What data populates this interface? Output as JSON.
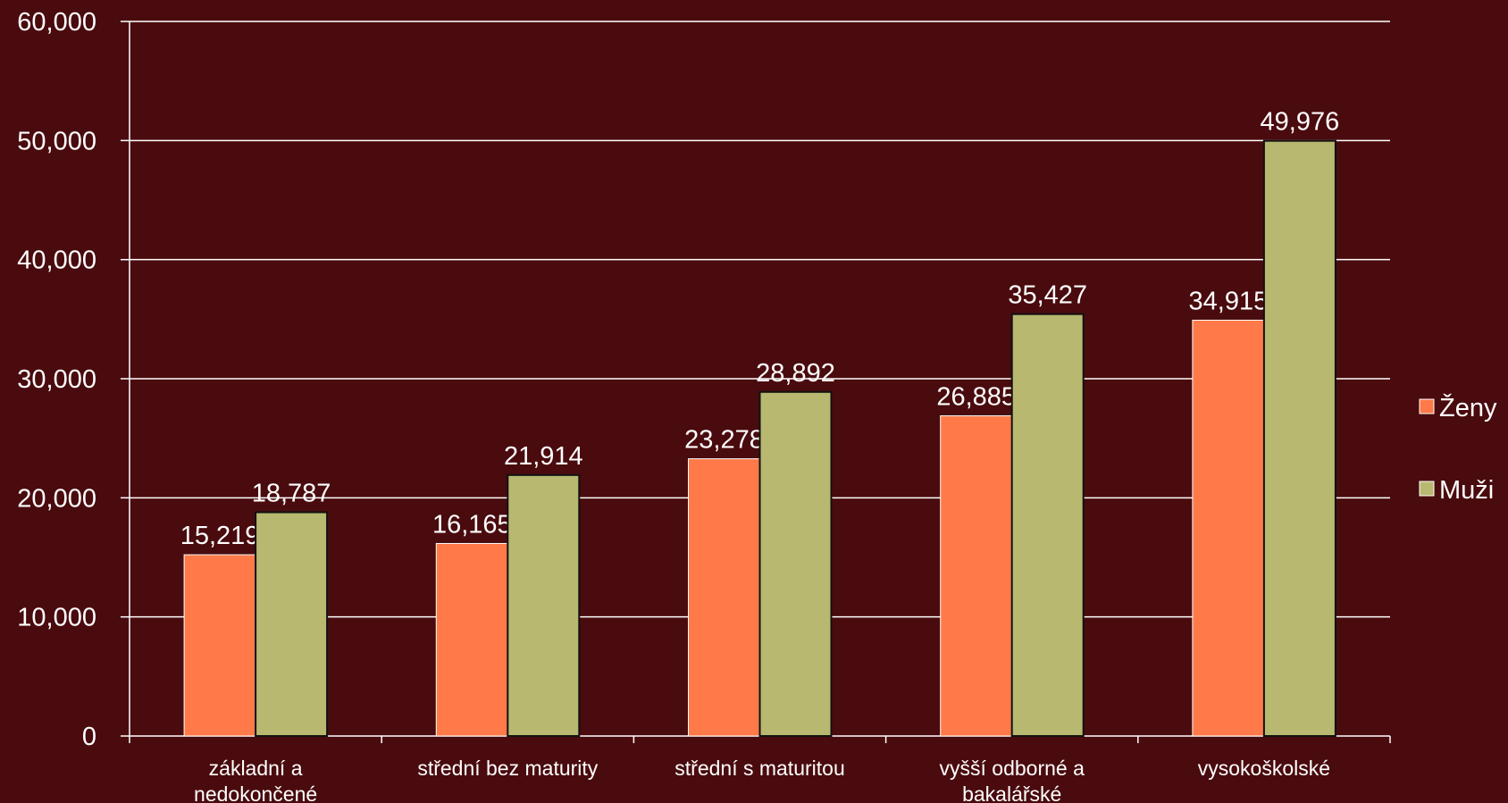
{
  "chart_data": {
    "type": "bar",
    "categories": [
      [
        "základní a",
        "nedokončené"
      ],
      [
        "střední bez maturity"
      ],
      [
        "střední s maturitou"
      ],
      [
        "vyšší odborné a",
        "bakalářské"
      ],
      [
        "vysokoškolské"
      ]
    ],
    "series": [
      {
        "name": "Ženy",
        "values": [
          15219,
          16165,
          23278,
          26885,
          34915
        ],
        "value_labels": [
          "15,219",
          "16,165",
          "23,278",
          "26,885",
          "34,915"
        ],
        "color": "#ff7a48"
      },
      {
        "name": "Muži",
        "values": [
          18787,
          21914,
          28892,
          35427,
          49976
        ],
        "value_labels": [
          "18,787",
          "21,914",
          "28,892",
          "35,427",
          "49,976"
        ],
        "color": "#b8b870"
      }
    ],
    "ylim": [
      0,
      60000
    ],
    "yticks": [
      0,
      10000,
      20000,
      30000,
      40000,
      50000,
      60000
    ],
    "ytick_labels": [
      "0",
      "10,000",
      "20,000",
      "30,000",
      "40,000",
      "50,000",
      "60,000"
    ],
    "grid": true,
    "legend_position": "right",
    "background_color": "#4a0b0e",
    "gridline_color": "#ffffff",
    "text_color": "#ffffff"
  }
}
